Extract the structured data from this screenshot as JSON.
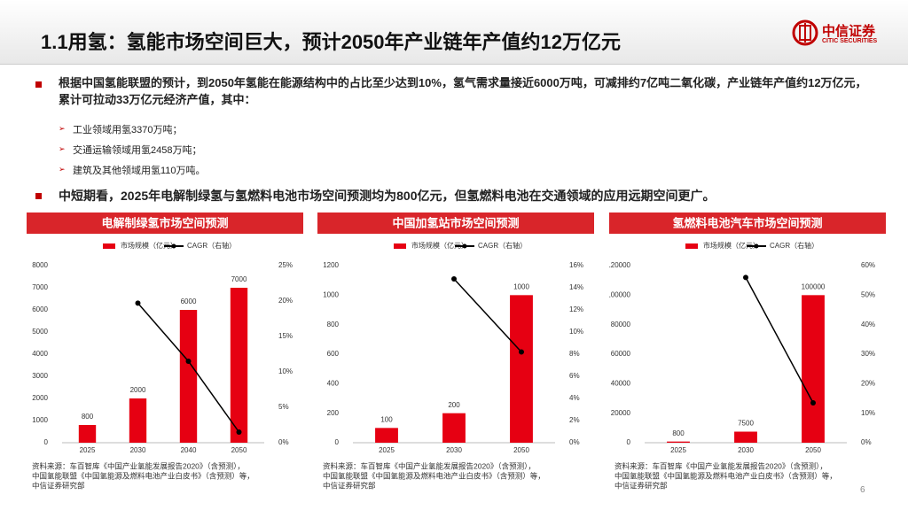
{
  "header": {
    "title": "1.1用氢：氢能市场空间巨大，预计2050年产业链年产值约12万亿元",
    "logo_cn": "中信证券",
    "logo_en": "CITIC SECURITIES"
  },
  "bullets": [
    {
      "text": "根据中国氢能联盟的预计，到2050年氢能在能源结构中的占比至少达到10%，氢气需求量接近6000万吨，可减排约7亿吨二氧化碳，产业链年产值约12万亿元，累计可拉动33万亿元经济产值，其中：",
      "subs": [
        "工业领域用氢3370万吨；",
        "交通运输领域用氢2458万吨；",
        "建筑及其他领域用氢110万吨。"
      ]
    },
    {
      "text": "中短期看，2025年电解制绿氢与氢燃料电池市场空间预测均为800亿元，但氢燃料电池在交通领域的应用远期空间更广。"
    }
  ],
  "chart_data": [
    {
      "type": "bar",
      "title": "电解制绿氢市场空间预测",
      "categories": [
        "2025",
        "2030",
        "2040",
        "2050"
      ],
      "series": [
        {
          "name": "市场规模（亿元）",
          "color": "#e60012",
          "values": [
            800,
            2000,
            6000,
            7000
          ]
        },
        {
          "name": "CAGR（右轴）",
          "color": "#000000",
          "type": "line",
          "axis": "y2",
          "values": [
            null,
            19.7,
            11.5,
            1.5
          ]
        }
      ],
      "ylim": [
        0,
        8000
      ],
      "yticks": [
        0,
        1000,
        2000,
        3000,
        4000,
        5000,
        6000,
        7000,
        8000
      ],
      "y2lim": [
        0,
        25
      ],
      "y2ticks": [
        {
          "value": 0,
          "label": "0%"
        },
        {
          "value": 5,
          "label": "5%"
        },
        {
          "value": 10,
          "label": "10%"
        },
        {
          "value": 15,
          "label": "15%"
        },
        {
          "value": 20,
          "label": "20%"
        },
        {
          "value": 25,
          "label": "25%"
        }
      ],
      "source": [
        "资料来源：车百智库《中国产业氢能发展报告2020》（含预测），",
        "中国氢能联盟《中国氢能源及燃料电池产业白皮书》（含预测）等，",
        "中信证券研究部"
      ]
    },
    {
      "type": "bar",
      "title": "中国加氢站市场空间预测",
      "categories": [
        "2025",
        "2030",
        "2050"
      ],
      "series": [
        {
          "name": "市场规模（亿元）",
          "color": "#e60012",
          "values": [
            100,
            200,
            1000
          ]
        },
        {
          "name": "CAGR（右轴）",
          "color": "#000000",
          "type": "line",
          "axis": "y2",
          "values": [
            null,
            14.8,
            8.2
          ]
        }
      ],
      "ylim": [
        0,
        1200
      ],
      "yticks": [
        0,
        200,
        400,
        600,
        800,
        1000,
        1200
      ],
      "y2lim": [
        0,
        16
      ],
      "y2ticks": [
        {
          "value": 0,
          "label": "0%"
        },
        {
          "value": 2,
          "label": "2%"
        },
        {
          "value": 4,
          "label": "4%"
        },
        {
          "value": 6,
          "label": "6%"
        },
        {
          "value": 8,
          "label": "8%"
        },
        {
          "value": 10,
          "label": "10%"
        },
        {
          "value": 12,
          "label": "12%"
        },
        {
          "value": 14,
          "label": "14%"
        },
        {
          "value": 16,
          "label": "16%"
        }
      ],
      "source": [
        "资料来源：车百智库《中国产业氢能发展报告2020》（含预测），",
        "中国氢能联盟《中国氢能源及燃料电池产业白皮书》（含预测）等，",
        "中信证券研究部"
      ]
    },
    {
      "type": "bar",
      "title": "氢燃料电池汽车市场空间预测",
      "categories": [
        "2025",
        "2030",
        "2050"
      ],
      "series": [
        {
          "name": "市场规模（亿元）",
          "color": "#e60012",
          "values": [
            800,
            7500,
            100000
          ]
        },
        {
          "name": "CAGR（右轴）",
          "color": "#000000",
          "type": "line",
          "axis": "y2",
          "values": [
            null,
            56,
            13.5
          ]
        }
      ],
      "ylim": [
        0,
        120000
      ],
      "yticks": [
        0,
        20000,
        40000,
        60000,
        80000,
        100000,
        120000
      ],
      "y2lim": [
        0,
        60
      ],
      "y2ticks": [
        {
          "value": 0,
          "label": "0%"
        },
        {
          "value": 10,
          "label": "10%"
        },
        {
          "value": 20,
          "label": "20%"
        },
        {
          "value": 30,
          "label": "30%"
        },
        {
          "value": 40,
          "label": "40%"
        },
        {
          "value": 50,
          "label": "50%"
        },
        {
          "value": 60,
          "label": "60%"
        }
      ],
      "source": [
        "资料来源：车百智库《中国产业氢能发展报告2020》（含预测），",
        "中国氢能联盟《中国氢能源及燃料电池产业白皮书》（含预测）等，",
        "中信证券研究部"
      ]
    }
  ],
  "page_number": "6"
}
